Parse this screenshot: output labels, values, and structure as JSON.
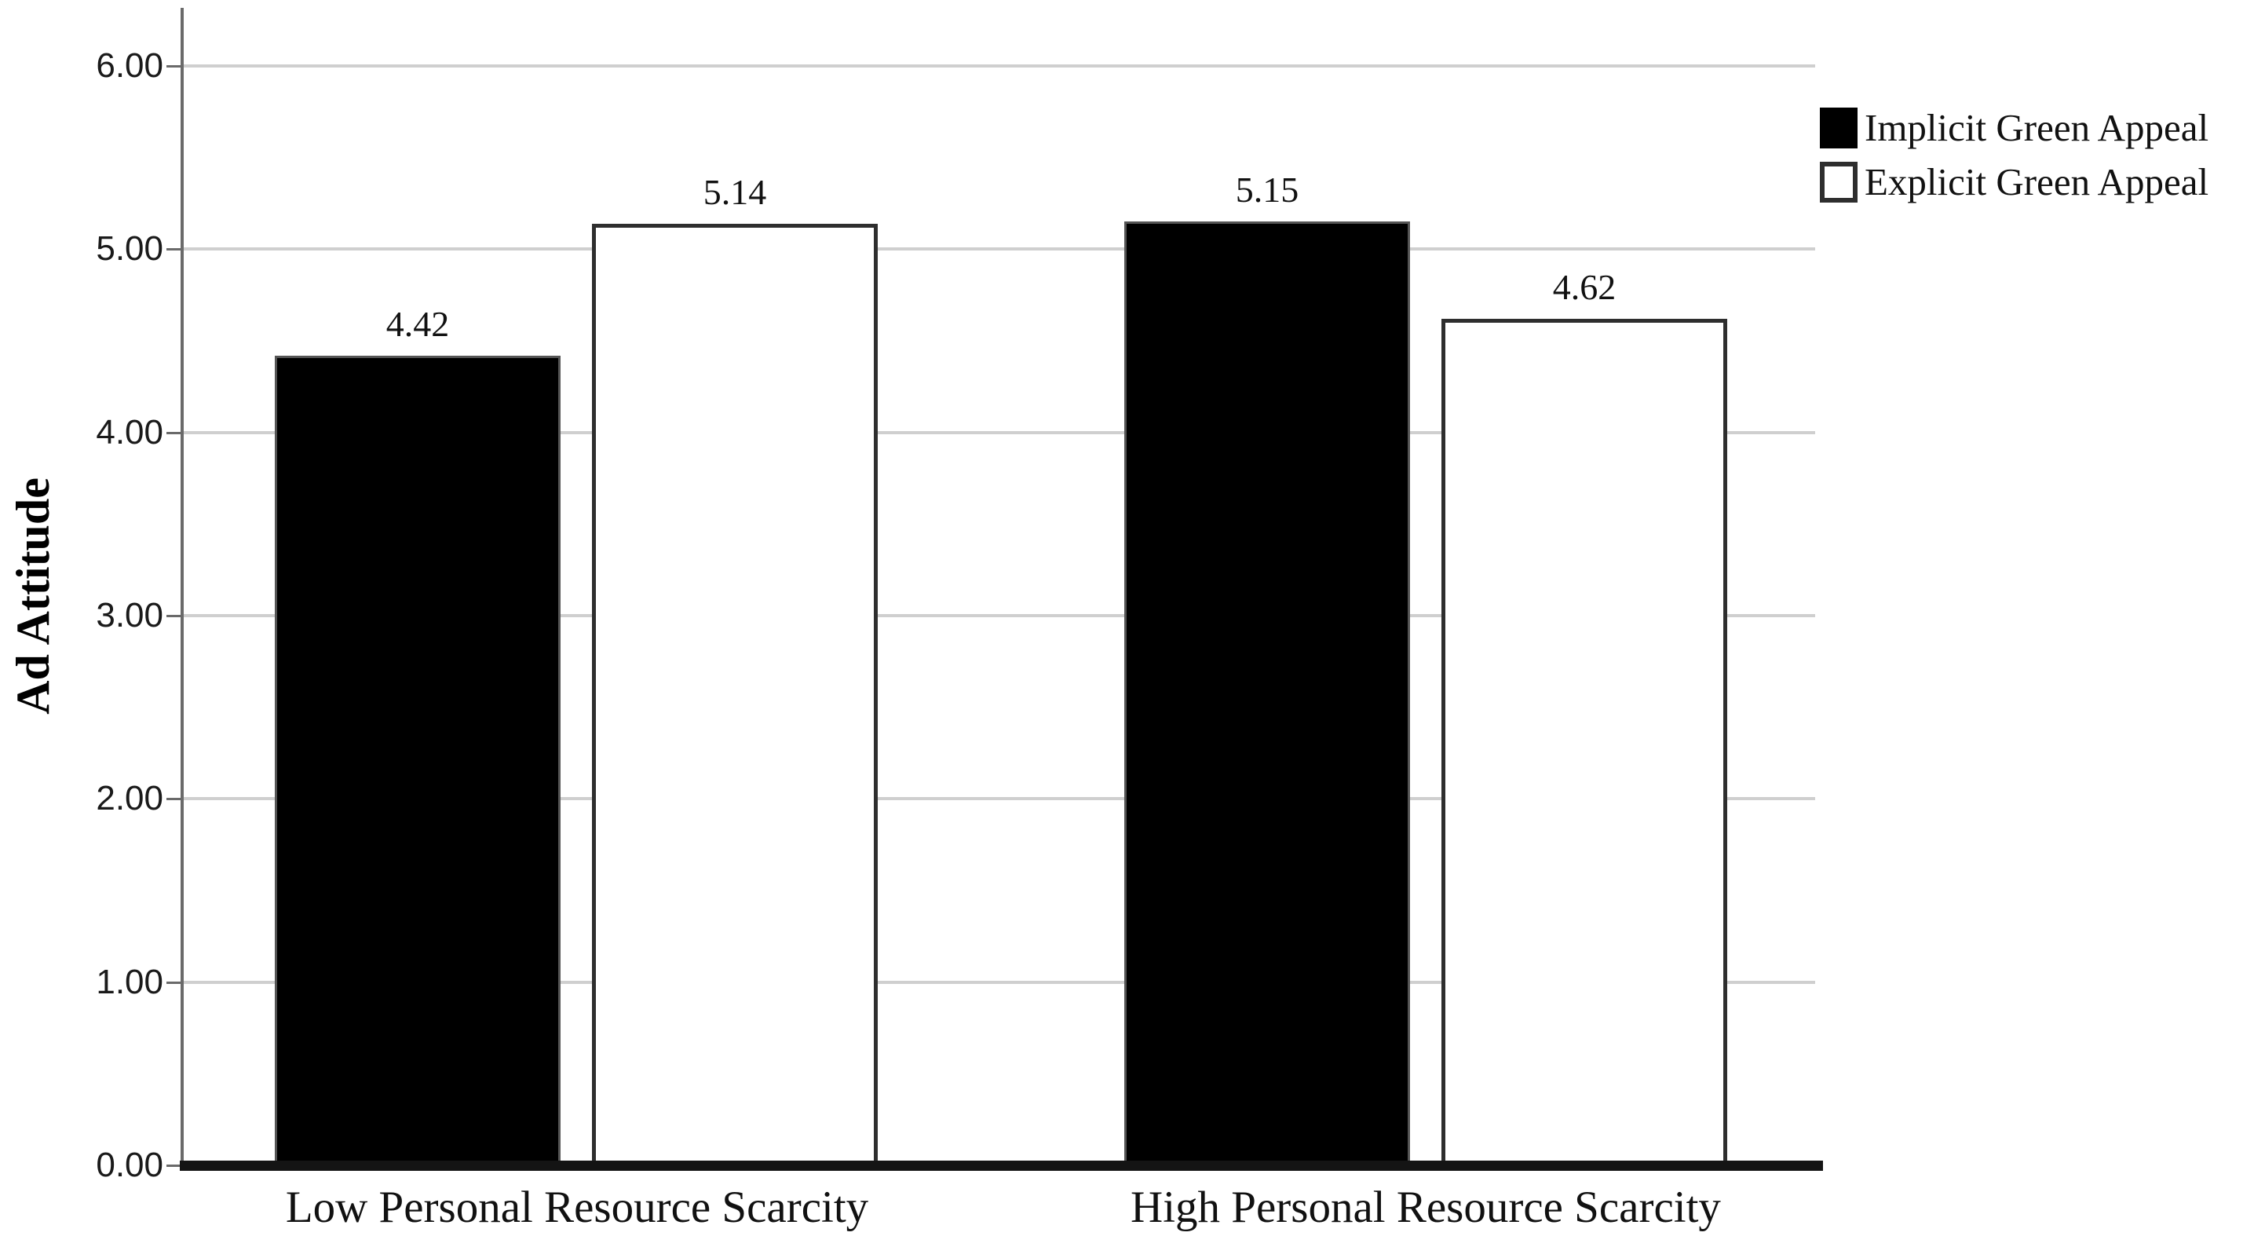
{
  "chart_data": {
    "type": "bar",
    "title": "",
    "xlabel": "",
    "ylabel": "Ad Attitude",
    "categories": [
      "Low Personal Resource Scarcity",
      "High Personal Resource Scarcity"
    ],
    "series": [
      {
        "name": "Implicit Green Appeal",
        "fill": "#000000",
        "style": "filled",
        "values": [
          4.42,
          5.15
        ]
      },
      {
        "name": "Explicit Green Appeal",
        "fill": "#ffffff",
        "style": "outline",
        "values": [
          5.14,
          4.62
        ]
      }
    ],
    "value_labels": [
      [
        "4.42",
        "5.15"
      ],
      [
        "5.14",
        "4.62"
      ]
    ],
    "yticks": [
      "6.00",
      "5.00",
      "4.00",
      "3.00",
      "2.00",
      "1.00",
      "0.00"
    ],
    "ylim": [
      0,
      6.3
    ],
    "grid": true,
    "legend_position": "top-right"
  },
  "colors": {
    "background": "#ffffff",
    "gridline": "#cfcfcf",
    "y_axis_line": "#6a6a6a",
    "x_axis_line": "#141414",
    "white_bar_border": "#2e2e2e",
    "black_bar_fill": "#000000",
    "text": "#111111"
  }
}
